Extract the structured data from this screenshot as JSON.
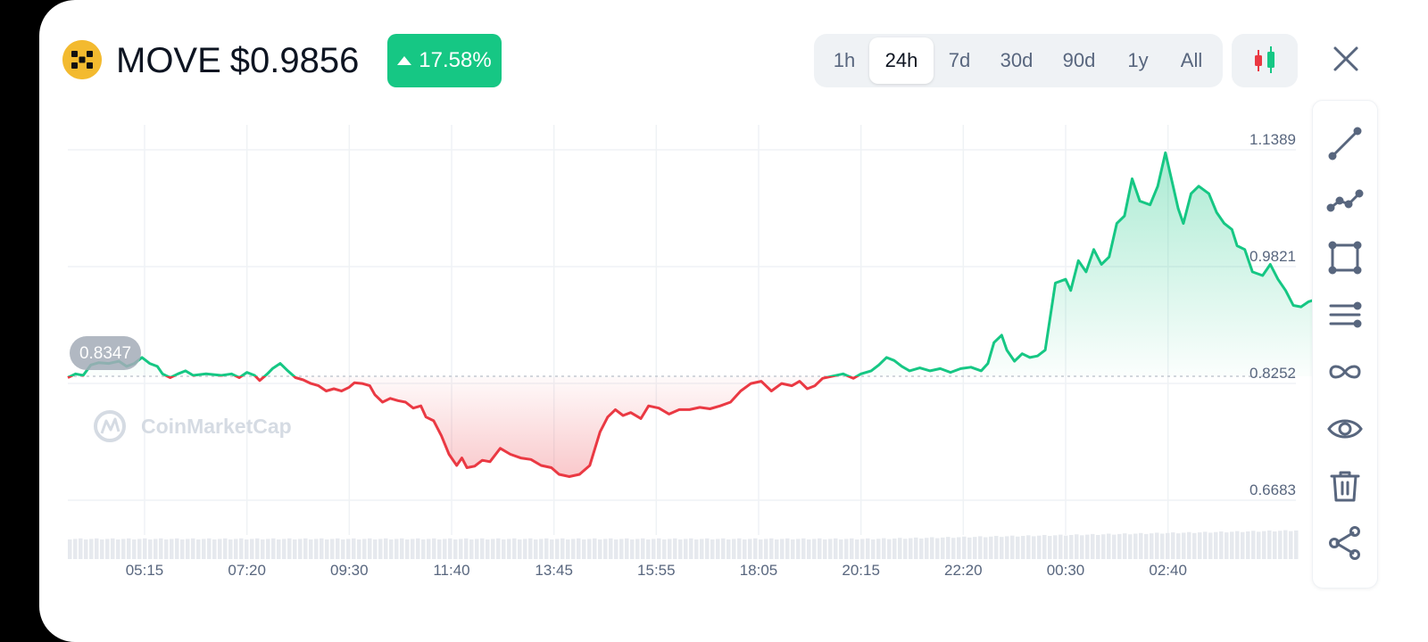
{
  "header": {
    "symbol": "MOVE",
    "price": "$0.9856",
    "change_pct": "17.58%",
    "change_direction": "up"
  },
  "range_options": [
    "1h",
    "24h",
    "7d",
    "30d",
    "90d",
    "1y",
    "All"
  ],
  "range_selected": "24h",
  "tools": [
    "line-tool-icon",
    "polyline-tool-icon",
    "rectangle-tool-icon",
    "parallel-lines-icon",
    "infinity-icon",
    "eye-icon",
    "trash-icon",
    "share-icon"
  ],
  "colors": {
    "up": "#16c784",
    "down": "#ea3943",
    "grid": "#eff2f5",
    "text_muted": "#58667e"
  },
  "watermark": "CoinMarketCap",
  "chart_data": {
    "type": "area",
    "baseline": 0.8347,
    "baseline_label": "0.8347",
    "y_ticks": [
      0.6683,
      0.8252,
      0.9821,
      1.1389
    ],
    "y_tick_labels": [
      "0.6683",
      "0.8252",
      "0.9821",
      "1.1389"
    ],
    "x_tick_labels": [
      "05:15",
      "07:20",
      "09:30",
      "11:40",
      "13:45",
      "15:55",
      "18:05",
      "20:15",
      "22:20",
      "00:30",
      "02:40"
    ],
    "x_tick_pos": [
      1.5,
      3.5,
      5.5,
      7.5,
      9.5,
      11.5,
      13.5,
      15.5,
      17.5,
      19.5,
      21.5
    ],
    "x_range": [
      0,
      24
    ],
    "ylim": [
      0.63,
      1.18
    ],
    "points": [
      [
        0,
        0.833
      ],
      [
        0.15,
        0.838
      ],
      [
        0.3,
        0.836
      ],
      [
        0.45,
        0.85
      ],
      [
        0.6,
        0.853
      ],
      [
        0.8,
        0.852
      ],
      [
        1.0,
        0.855
      ],
      [
        1.15,
        0.848
      ],
      [
        1.3,
        0.852
      ],
      [
        1.45,
        0.86
      ],
      [
        1.6,
        0.852
      ],
      [
        1.75,
        0.848
      ],
      [
        1.85,
        0.838
      ],
      [
        2.0,
        0.833
      ],
      [
        2.15,
        0.838
      ],
      [
        2.3,
        0.842
      ],
      [
        2.45,
        0.836
      ],
      [
        2.7,
        0.838
      ],
      [
        3.0,
        0.836
      ],
      [
        3.2,
        0.838
      ],
      [
        3.35,
        0.833
      ],
      [
        3.5,
        0.84
      ],
      [
        3.65,
        0.836
      ],
      [
        3.75,
        0.829
      ],
      [
        3.9,
        0.838
      ],
      [
        4.0,
        0.845
      ],
      [
        4.15,
        0.852
      ],
      [
        4.3,
        0.842
      ],
      [
        4.45,
        0.833
      ],
      [
        4.6,
        0.83
      ],
      [
        4.75,
        0.825
      ],
      [
        4.9,
        0.822
      ],
      [
        5.05,
        0.815
      ],
      [
        5.2,
        0.818
      ],
      [
        5.35,
        0.815
      ],
      [
        5.5,
        0.82
      ],
      [
        5.6,
        0.826
      ],
      [
        5.75,
        0.825
      ],
      [
        5.9,
        0.822
      ],
      [
        6.0,
        0.81
      ],
      [
        6.15,
        0.8
      ],
      [
        6.3,
        0.805
      ],
      [
        6.45,
        0.802
      ],
      [
        6.6,
        0.8
      ],
      [
        6.75,
        0.792
      ],
      [
        6.9,
        0.795
      ],
      [
        7.0,
        0.78
      ],
      [
        7.15,
        0.775
      ],
      [
        7.3,
        0.755
      ],
      [
        7.45,
        0.73
      ],
      [
        7.6,
        0.715
      ],
      [
        7.7,
        0.725
      ],
      [
        7.8,
        0.712
      ],
      [
        7.95,
        0.714
      ],
      [
        8.1,
        0.722
      ],
      [
        8.25,
        0.72
      ],
      [
        8.45,
        0.738
      ],
      [
        8.65,
        0.73
      ],
      [
        8.85,
        0.725
      ],
      [
        9.05,
        0.723
      ],
      [
        9.25,
        0.715
      ],
      [
        9.45,
        0.712
      ],
      [
        9.6,
        0.703
      ],
      [
        9.8,
        0.7
      ],
      [
        10.0,
        0.703
      ],
      [
        10.2,
        0.715
      ],
      [
        10.4,
        0.76
      ],
      [
        10.55,
        0.78
      ],
      [
        10.7,
        0.79
      ],
      [
        10.85,
        0.782
      ],
      [
        11.0,
        0.786
      ],
      [
        11.2,
        0.778
      ],
      [
        11.35,
        0.795
      ],
      [
        11.55,
        0.792
      ],
      [
        11.75,
        0.784
      ],
      [
        11.95,
        0.79
      ],
      [
        12.15,
        0.79
      ],
      [
        12.35,
        0.793
      ],
      [
        12.55,
        0.791
      ],
      [
        12.75,
        0.795
      ],
      [
        12.95,
        0.8
      ],
      [
        13.15,
        0.815
      ],
      [
        13.35,
        0.825
      ],
      [
        13.55,
        0.828
      ],
      [
        13.75,
        0.815
      ],
      [
        13.95,
        0.825
      ],
      [
        14.15,
        0.822
      ],
      [
        14.3,
        0.828
      ],
      [
        14.45,
        0.818
      ],
      [
        14.6,
        0.822
      ],
      [
        14.75,
        0.832
      ],
      [
        14.95,
        0.835
      ],
      [
        15.15,
        0.838
      ],
      [
        15.35,
        0.832
      ],
      [
        15.5,
        0.838
      ],
      [
        15.7,
        0.842
      ],
      [
        15.85,
        0.85
      ],
      [
        16.0,
        0.86
      ],
      [
        16.15,
        0.856
      ],
      [
        16.3,
        0.848
      ],
      [
        16.45,
        0.842
      ],
      [
        16.65,
        0.846
      ],
      [
        16.85,
        0.842
      ],
      [
        17.05,
        0.845
      ],
      [
        17.25,
        0.84
      ],
      [
        17.45,
        0.845
      ],
      [
        17.65,
        0.847
      ],
      [
        17.85,
        0.842
      ],
      [
        17.98,
        0.852
      ],
      [
        18.1,
        0.88
      ],
      [
        18.25,
        0.89
      ],
      [
        18.35,
        0.87
      ],
      [
        18.5,
        0.855
      ],
      [
        18.65,
        0.865
      ],
      [
        18.8,
        0.86
      ],
      [
        18.95,
        0.862
      ],
      [
        19.1,
        0.87
      ],
      [
        19.3,
        0.96
      ],
      [
        19.5,
        0.965
      ],
      [
        19.6,
        0.95
      ],
      [
        19.75,
        0.99
      ],
      [
        19.9,
        0.975
      ],
      [
        20.05,
        1.005
      ],
      [
        20.2,
        0.985
      ],
      [
        20.35,
        0.995
      ],
      [
        20.5,
        1.04
      ],
      [
        20.65,
        1.05
      ],
      [
        20.8,
        1.1
      ],
      [
        20.95,
        1.07
      ],
      [
        21.15,
        1.065
      ],
      [
        21.3,
        1.09
      ],
      [
        21.45,
        1.135
      ],
      [
        21.6,
        1.09
      ],
      [
        21.7,
        1.06
      ],
      [
        21.8,
        1.04
      ],
      [
        21.95,
        1.08
      ],
      [
        22.1,
        1.09
      ],
      [
        22.3,
        1.08
      ],
      [
        22.45,
        1.055
      ],
      [
        22.6,
        1.04
      ],
      [
        22.75,
        1.032
      ],
      [
        22.85,
        1.01
      ],
      [
        23.0,
        1.005
      ],
      [
        23.15,
        0.975
      ],
      [
        23.35,
        0.97
      ],
      [
        23.5,
        0.985
      ],
      [
        23.65,
        0.965
      ],
      [
        23.8,
        0.95
      ],
      [
        23.95,
        0.93
      ],
      [
        24.1,
        0.928
      ],
      [
        24.25,
        0.935
      ],
      [
        24.4,
        0.938
      ]
    ]
  }
}
